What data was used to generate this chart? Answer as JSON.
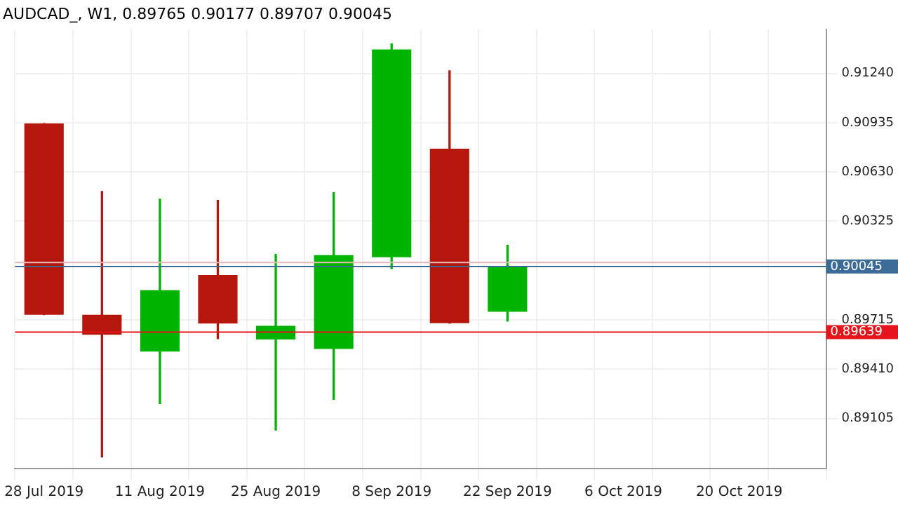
{
  "chart_data": {
    "type": "candlestick",
    "title": "AUDCAD_, W1, 0.89765 0.90177 0.89707 0.90045",
    "categories": [
      "28 Jul 2019",
      null,
      "11 Aug 2019",
      null,
      "25 Aug 2019",
      null,
      "8 Sep 2019",
      null,
      "22 Sep 2019",
      null,
      "6 Oct 2019",
      null,
      "20 Oct 2019",
      null
    ],
    "ohlc": [
      [
        0.9093,
        0.9093,
        0.89747,
        0.89747
      ],
      [
        0.89747,
        0.9051,
        0.88866,
        0.89623
      ],
      [
        0.89519,
        0.90462,
        0.89197,
        0.89898
      ],
      [
        0.89993,
        0.90454,
        0.89599,
        0.89692
      ],
      [
        0.89594,
        0.9012,
        0.89033,
        0.89678
      ],
      [
        0.89535,
        0.90502,
        0.89223,
        0.90115
      ],
      [
        0.90102,
        0.91423,
        0.90031,
        0.91388
      ],
      [
        0.90774,
        0.91256,
        0.89694,
        0.89694
      ],
      [
        0.89765,
        0.90177,
        0.89707,
        0.90045
      ],
      null,
      null,
      null,
      null,
      null
    ],
    "colors": [
      "#b5170c",
      "#b5170c",
      "#00b400",
      "#b5170c",
      "#00b400",
      "#00b400",
      "#00b400",
      "#b5170c",
      "#00b400",
      null,
      null,
      null,
      null,
      null
    ],
    "ylim": [
      0.88795,
      0.9151
    ],
    "yticks": [
      {
        "value": 0.89105,
        "label": "0.89105"
      },
      {
        "value": 0.8941,
        "label": "0.89410"
      },
      {
        "value": 0.89715,
        "label": "0.89715"
      },
      {
        "value": 0.90325,
        "label": "0.90325"
      },
      {
        "value": 0.9063,
        "label": "0.90630"
      },
      {
        "value": 0.90935,
        "label": "0.90935"
      },
      {
        "value": 0.9124,
        "label": "0.91240"
      }
    ],
    "ref_lines": [
      {
        "axis": "y",
        "value": 0.9007,
        "color": "#e6b8b8"
      },
      {
        "axis": "y",
        "value": 0.90045,
        "label": "0.90045",
        "color": "#3d6b98"
      },
      {
        "axis": "y",
        "value": 0.89639,
        "label": "0.89639",
        "color": "#e8141c"
      }
    ],
    "grid": true,
    "legend": false
  }
}
